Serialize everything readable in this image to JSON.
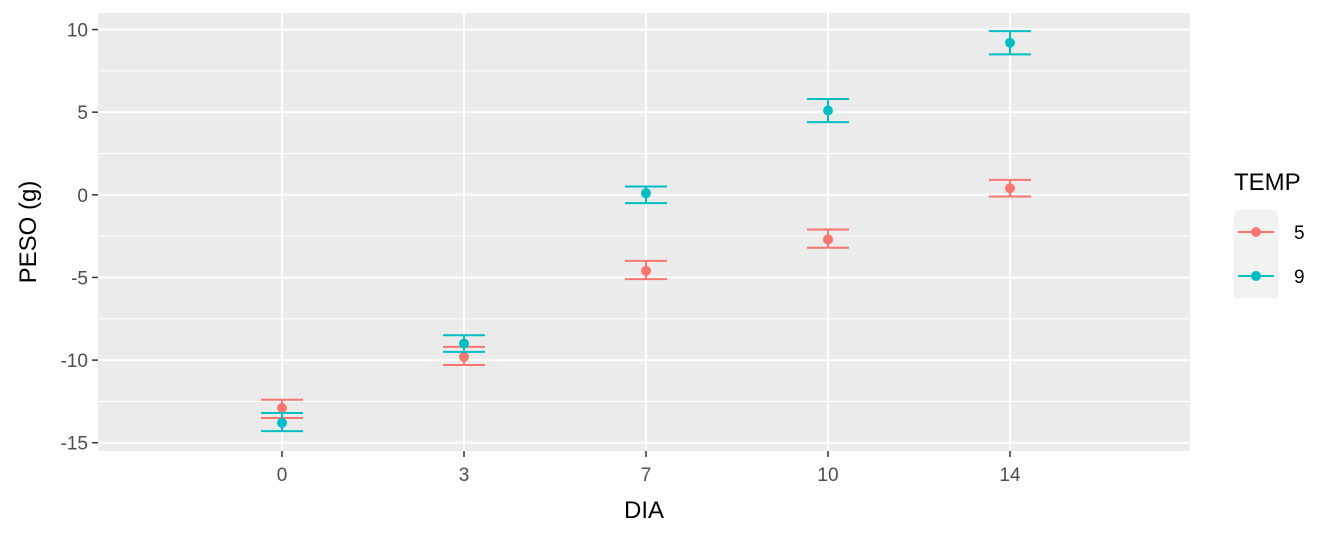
{
  "chart_data": {
    "type": "scatter",
    "xlabel": "DIA",
    "ylabel": "PESO (g)",
    "categories": [
      "0",
      "3",
      "7",
      "10",
      "14"
    ],
    "ylim": [
      -15.5,
      11
    ],
    "yticks": [
      -15,
      -10,
      -5,
      0,
      5,
      10
    ],
    "grid": true,
    "error_bars": true,
    "legend": {
      "title": "TEMP",
      "placement": "right"
    },
    "series": [
      {
        "name": "5",
        "color": "#F8766D",
        "values": [
          -12.9,
          -9.8,
          -4.6,
          -2.7,
          0.4
        ],
        "err_low": [
          -13.5,
          -10.3,
          -5.1,
          -3.2,
          -0.1
        ],
        "err_high": [
          -12.4,
          -9.2,
          -4.0,
          -2.1,
          0.9
        ]
      },
      {
        "name": "9",
        "color": "#00BFC4",
        "values": [
          -13.8,
          -9.0,
          0.1,
          5.1,
          9.2
        ],
        "err_low": [
          -14.3,
          -9.5,
          -0.5,
          4.4,
          8.5
        ],
        "err_high": [
          -13.2,
          -8.5,
          0.5,
          5.8,
          9.9
        ]
      }
    ]
  }
}
